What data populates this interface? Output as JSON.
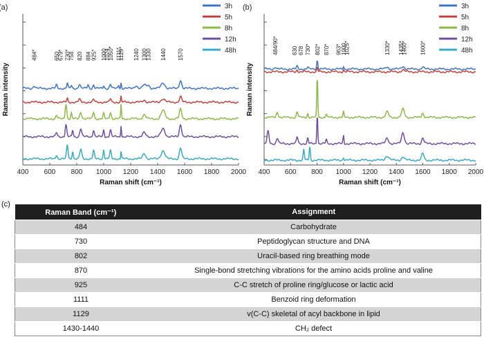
{
  "panel_a_label": "(a)",
  "panel_b_label": "(b)",
  "panel_c_label": "(c)",
  "series_colors": {
    "3h": "#3f73c1",
    "5h": "#c0413c",
    "8h": "#8db84a",
    "12h": "#6e4f9b",
    "48h": "#3aa9c3"
  },
  "chart_data": [
    {
      "type": "line",
      "panel": "(a)",
      "xlabel": "Raman shift (cm⁻¹)",
      "ylabel": "Raman intensity",
      "xlim": [
        400,
        2000
      ],
      "xticks": [
        400,
        600,
        800,
        1000,
        1200,
        1400,
        1600,
        1800,
        2000
      ],
      "grid": false,
      "legend_position": "top-right",
      "series": [
        {
          "name": "3h"
        },
        {
          "name": "5h"
        },
        {
          "name": "8h"
        },
        {
          "name": "12h"
        },
        {
          "name": "48h"
        }
      ],
      "peak_labels": [
        "484*",
        "650",
        "679*",
        "730*",
        "758",
        "820",
        "884",
        "925*",
        "1000",
        "1024",
        "1050*",
        "1111*",
        "1129*",
        "1240",
        "1300",
        "1330",
        "1440",
        "1570"
      ]
    },
    {
      "type": "line",
      "panel": "(b)",
      "xlabel": "Raman shift (cm⁻¹)",
      "ylabel": "Raman intensity",
      "xlim": [
        400,
        2000
      ],
      "xticks": [
        400,
        600,
        800,
        1000,
        1200,
        1400,
        1600,
        1800,
        2000
      ],
      "grid": false,
      "legend_position": "top-right",
      "series": [
        {
          "name": "3h"
        },
        {
          "name": "5h"
        },
        {
          "name": "8h"
        },
        {
          "name": "12h"
        },
        {
          "name": "48h"
        }
      ],
      "peak_labels": [
        "484/90*",
        "630",
        "678",
        "730*",
        "802*",
        "870*",
        "963*",
        "1000",
        "1025*",
        "1330*",
        "1435*",
        "1460*",
        "1600*"
      ]
    },
    {
      "type": "table",
      "panel": "(c)",
      "headers": [
        "Raman Band (cm⁻¹)",
        "Assignment"
      ],
      "rows": [
        [
          "484",
          "Carbohydrate"
        ],
        [
          "730",
          "Peptidoglycan structure and DNA"
        ],
        [
          "802",
          "Uracil-based ring breathing mode"
        ],
        [
          "870",
          "Single-bond stretching vibrations for the amino acids proline and valine"
        ],
        [
          "925",
          "C-C stretch of proline ring/glucose or lactic acid"
        ],
        [
          "1111",
          "Benzoid ring deformation"
        ],
        [
          "1129",
          "v(C-C) skeletal of acyl backbone in lipid"
        ],
        [
          "1430-1440",
          "CH₂ defect"
        ]
      ]
    }
  ]
}
